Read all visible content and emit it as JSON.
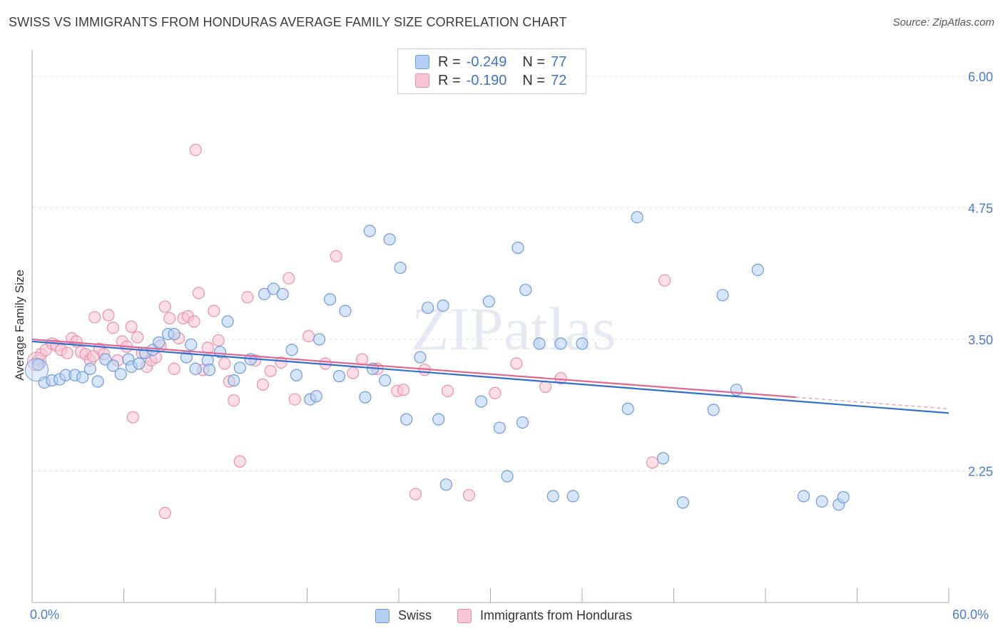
{
  "title": "SWISS VS IMMIGRANTS FROM HONDURAS AVERAGE FAMILY SIZE CORRELATION CHART",
  "source": "Source: ZipAtlas.com",
  "watermark": "ZIPatlas",
  "legend_top": [
    {
      "r_label": "R =",
      "r_value": "-0.249",
      "n_label": "N =",
      "n_value": "77"
    },
    {
      "r_label": "R =",
      "r_value": "-0.190",
      "n_label": "N =",
      "n_value": "72"
    }
  ],
  "legend_bottom": [
    "Swiss",
    "Immigrants from Honduras"
  ],
  "colors": {
    "swiss_fill": "#b6d0f3",
    "swiss_stroke": "#6f9ad8",
    "swiss_line": "#2f6fd0",
    "honduras_fill": "#f7c4d3",
    "honduras_stroke": "#e890aa",
    "honduras_line": "#e0668f",
    "tick_label": "#4a7cc9",
    "grid": "#dddddd"
  },
  "chart_data": {
    "type": "scatter",
    "title": "SWISS VS IMMIGRANTS FROM HONDURAS AVERAGE FAMILY SIZE CORRELATION CHART",
    "xlabel": "",
    "ylabel": "Average Family Size",
    "xlim": [
      0,
      60
    ],
    "ylim": [
      1.0,
      6.25
    ],
    "x_tick_labels": [
      "0.0%",
      "60.0%"
    ],
    "y_ticks": [
      2.25,
      3.5,
      4.75,
      6.0
    ],
    "y_tick_labels": [
      "2.25",
      "3.50",
      "4.75",
      "6.00"
    ],
    "grid": "horizontal dashed",
    "legend_position": "top-center",
    "series": [
      {
        "name": "Swiss",
        "r": -0.249,
        "n": 77,
        "trend": {
          "x": [
            0,
            60
          ],
          "y": [
            3.48,
            2.8
          ]
        },
        "points": [
          [
            0.4,
            3.26
          ],
          [
            0.8,
            3.09
          ],
          [
            1.3,
            3.11
          ],
          [
            1.8,
            3.12
          ],
          [
            2.2,
            3.16
          ],
          [
            2.8,
            3.16
          ],
          [
            3.3,
            3.14
          ],
          [
            3.8,
            3.22
          ],
          [
            4.3,
            3.1
          ],
          [
            4.8,
            3.31
          ],
          [
            5.3,
            3.25
          ],
          [
            5.8,
            3.17
          ],
          [
            6.3,
            3.31
          ],
          [
            6.5,
            3.24
          ],
          [
            7.0,
            3.27
          ],
          [
            7.4,
            3.37
          ],
          [
            7.9,
            3.4
          ],
          [
            8.3,
            3.47
          ],
          [
            8.9,
            3.55
          ],
          [
            9.3,
            3.55
          ],
          [
            10.1,
            3.33
          ],
          [
            10.4,
            3.45
          ],
          [
            10.7,
            3.22
          ],
          [
            11.5,
            3.3
          ],
          [
            11.6,
            3.21
          ],
          [
            12.3,
            3.38
          ],
          [
            12.8,
            3.67
          ],
          [
            13.2,
            3.11
          ],
          [
            13.6,
            3.23
          ],
          [
            14.3,
            3.31
          ],
          [
            15.2,
            3.93
          ],
          [
            15.8,
            3.98
          ],
          [
            16.4,
            3.93
          ],
          [
            17.0,
            3.4
          ],
          [
            17.3,
            3.16
          ],
          [
            18.2,
            2.93
          ],
          [
            18.6,
            2.96
          ],
          [
            18.8,
            3.5
          ],
          [
            19.5,
            3.88
          ],
          [
            20.1,
            3.15
          ],
          [
            20.5,
            3.77
          ],
          [
            21.8,
            2.95
          ],
          [
            22.1,
            4.53
          ],
          [
            22.3,
            3.22
          ],
          [
            23.1,
            3.11
          ],
          [
            23.4,
            4.45
          ],
          [
            24.1,
            4.18
          ],
          [
            24.5,
            2.74
          ],
          [
            25.4,
            3.33
          ],
          [
            25.9,
            3.8
          ],
          [
            26.6,
            2.74
          ],
          [
            26.9,
            3.82
          ],
          [
            27.1,
            2.12
          ],
          [
            29.4,
            2.91
          ],
          [
            29.9,
            3.86
          ],
          [
            30.6,
            2.66
          ],
          [
            31.1,
            2.2
          ],
          [
            31.8,
            4.37
          ],
          [
            32.1,
            2.71
          ],
          [
            32.3,
            3.97
          ],
          [
            33.2,
            3.46
          ],
          [
            34.1,
            2.01
          ],
          [
            34.6,
            3.46
          ],
          [
            35.4,
            2.01
          ],
          [
            36.0,
            3.46
          ],
          [
            39.0,
            2.84
          ],
          [
            39.6,
            4.66
          ],
          [
            41.3,
            2.37
          ],
          [
            42.6,
            1.95
          ],
          [
            44.6,
            2.83
          ],
          [
            45.2,
            3.92
          ],
          [
            46.1,
            3.02
          ],
          [
            47.5,
            4.16
          ],
          [
            50.5,
            2.01
          ],
          [
            51.7,
            1.96
          ],
          [
            52.8,
            1.93
          ],
          [
            53.1,
            2.0
          ]
        ]
      },
      {
        "name": "Immigrants from Honduras",
        "r": -0.19,
        "n": 72,
        "trend": {
          "x": [
            0,
            50
          ],
          "y": [
            3.5,
            2.95
          ]
        },
        "points": [
          [
            0.4,
            3.3
          ],
          [
            0.6,
            3.36
          ],
          [
            0.9,
            3.4
          ],
          [
            1.3,
            3.46
          ],
          [
            1.6,
            3.44
          ],
          [
            1.9,
            3.4
          ],
          [
            2.3,
            3.37
          ],
          [
            2.6,
            3.51
          ],
          [
            2.9,
            3.48
          ],
          [
            3.2,
            3.38
          ],
          [
            3.5,
            3.36
          ],
          [
            3.8,
            3.3
          ],
          [
            4.1,
            3.71
          ],
          [
            4.4,
            3.41
          ],
          [
            4.7,
            3.36
          ],
          [
            5.0,
            3.73
          ],
          [
            5.3,
            3.61
          ],
          [
            5.6,
            3.3
          ],
          [
            5.9,
            3.48
          ],
          [
            6.2,
            3.43
          ],
          [
            6.5,
            3.62
          ],
          [
            6.9,
            3.52
          ],
          [
            7.2,
            3.37
          ],
          [
            7.5,
            3.24
          ],
          [
            7.8,
            3.3
          ],
          [
            8.1,
            3.33
          ],
          [
            8.4,
            3.44
          ],
          [
            8.7,
            3.81
          ],
          [
            9.0,
            3.7
          ],
          [
            9.3,
            3.22
          ],
          [
            9.6,
            3.51
          ],
          [
            9.9,
            3.7
          ],
          [
            10.2,
            3.72
          ],
          [
            10.6,
            3.67
          ],
          [
            10.9,
            3.94
          ],
          [
            11.2,
            3.21
          ],
          [
            11.5,
            3.42
          ],
          [
            11.9,
            3.77
          ],
          [
            12.2,
            3.49
          ],
          [
            12.6,
            3.27
          ],
          [
            12.9,
            3.1
          ],
          [
            13.2,
            2.92
          ],
          [
            13.6,
            2.34
          ],
          [
            14.1,
            3.9
          ],
          [
            14.6,
            3.3
          ],
          [
            15.1,
            3.07
          ],
          [
            15.6,
            3.2
          ],
          [
            16.3,
            3.28
          ],
          [
            16.8,
            4.08
          ],
          [
            17.2,
            2.93
          ],
          [
            18.1,
            3.53
          ],
          [
            19.2,
            3.27
          ],
          [
            19.9,
            4.29
          ],
          [
            21.0,
            3.18
          ],
          [
            21.6,
            3.31
          ],
          [
            22.6,
            3.22
          ],
          [
            23.9,
            3.01
          ],
          [
            24.3,
            3.02
          ],
          [
            25.1,
            2.03
          ],
          [
            25.7,
            3.21
          ],
          [
            27.2,
            3.01
          ],
          [
            28.6,
            2.02
          ],
          [
            30.3,
            2.99
          ],
          [
            31.7,
            3.27
          ],
          [
            33.6,
            3.05
          ],
          [
            34.6,
            3.13
          ],
          [
            40.6,
            2.33
          ],
          [
            41.4,
            4.06
          ],
          [
            6.6,
            2.76
          ],
          [
            8.7,
            1.85
          ],
          [
            10.7,
            5.3
          ],
          [
            4.0,
            3.34
          ]
        ]
      }
    ]
  }
}
